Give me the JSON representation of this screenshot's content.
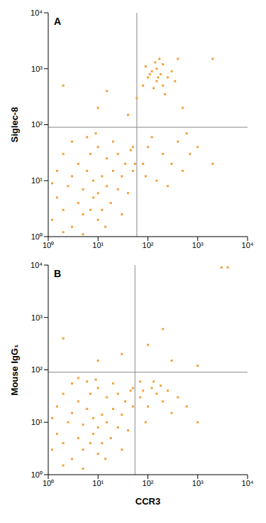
{
  "chart_data": [
    {
      "type": "scatter",
      "title": "A",
      "y_label": "Siglec-8",
      "color": "#f2a23a",
      "marker": "square",
      "log": true,
      "xlim": [
        1,
        10000
      ],
      "ylim": [
        1,
        10000
      ],
      "xticks": [
        {
          "value": 1,
          "label": "10⁰"
        },
        {
          "value": 10,
          "label": "10¹"
        },
        {
          "value": 100,
          "label": "10²"
        },
        {
          "value": 1000,
          "label": "10³"
        },
        {
          "value": 10000,
          "label": "10⁴"
        }
      ],
      "yticks": [
        {
          "value": 1,
          "label": "10⁰"
        },
        {
          "value": 10,
          "label": "10¹"
        },
        {
          "value": 100,
          "label": "10²"
        },
        {
          "value": 1000,
          "label": "10³"
        },
        {
          "value": 10000,
          "label": "10⁴"
        }
      ],
      "quadrant": {
        "x": 60,
        "y": 90
      },
      "x": [
        1.2,
        1.5,
        2,
        2.5,
        3,
        3,
        4,
        4,
        5,
        5,
        6,
        7,
        7,
        8,
        8,
        10,
        10,
        10,
        12,
        12,
        15,
        15,
        18,
        20,
        20,
        25,
        25,
        30,
        35,
        40,
        45,
        50,
        1.5,
        2,
        1.2,
        3,
        6,
        9,
        2,
        5,
        14,
        30,
        50,
        55,
        80,
        100,
        120,
        150,
        150,
        180,
        200,
        200,
        250,
        300,
        130,
        90,
        220,
        170,
        60,
        400,
        350,
        110,
        160,
        140,
        80,
        100,
        150,
        200,
        300,
        400,
        500,
        700,
        1000,
        250,
        120,
        600,
        2000,
        90,
        10,
        15,
        2,
        40,
        500,
        2000
      ],
      "y": [
        2,
        5,
        3,
        8,
        1.5,
        12,
        4,
        20,
        2.5,
        7,
        15,
        3,
        30,
        5,
        10,
        2,
        6,
        40,
        12,
        3,
        8,
        25,
        4,
        15,
        50,
        7,
        30,
        12,
        20,
        6,
        35,
        15,
        15,
        30,
        9,
        50,
        60,
        70,
        1.2,
        1.1,
        1.5,
        2.5,
        40,
        20,
        500,
        700,
        900,
        600,
        1000,
        800,
        500,
        1200,
        700,
        900,
        450,
        1100,
        350,
        1500,
        300,
        1500,
        600,
        800,
        700,
        1300,
        20,
        40,
        10,
        30,
        20,
        50,
        15,
        30,
        40,
        8,
        60,
        70,
        20,
        12,
        200,
        400,
        500,
        150,
        200,
        1500
      ]
    },
    {
      "type": "scatter",
      "title": "B",
      "x_label": "CCR3",
      "y_label": "Mouse IgG₁",
      "color": "#f2a23a",
      "marker": "square",
      "log": true,
      "xlim": [
        1,
        10000
      ],
      "ylim": [
        1,
        10000
      ],
      "xticks": [
        {
          "value": 1,
          "label": "10⁰"
        },
        {
          "value": 10,
          "label": "10¹"
        },
        {
          "value": 100,
          "label": "10²"
        },
        {
          "value": 1000,
          "label": "10³"
        },
        {
          "value": 10000,
          "label": "10⁴"
        }
      ],
      "yticks": [
        {
          "value": 1,
          "label": "10⁰"
        },
        {
          "value": 10,
          "label": "10¹"
        },
        {
          "value": 100,
          "label": "10²"
        },
        {
          "value": 1000,
          "label": "10³"
        },
        {
          "value": 10000,
          "label": "10⁴"
        }
      ],
      "quadrant": {
        "x": 55,
        "y": 90
      },
      "x": [
        1.2,
        1.5,
        2,
        2.5,
        3,
        3,
        4,
        4,
        5,
        5,
        6,
        7,
        7,
        8,
        8,
        10,
        10,
        10,
        12,
        12,
        15,
        15,
        18,
        20,
        20,
        25,
        25,
        30,
        35,
        40,
        45,
        50,
        1.5,
        2,
        1.2,
        3,
        6,
        9,
        2,
        5,
        14,
        30,
        50,
        4,
        70,
        80,
        100,
        120,
        150,
        200,
        250,
        300,
        180,
        90,
        400,
        600,
        1000,
        130,
        70,
        10,
        30,
        100,
        2,
        300,
        1000,
        3000,
        4000,
        200
      ],
      "y": [
        3,
        6,
        4,
        10,
        2,
        15,
        5,
        25,
        3,
        9,
        18,
        4,
        35,
        6,
        12,
        2.5,
        8,
        45,
        14,
        4,
        10,
        30,
        5,
        18,
        55,
        8,
        35,
        14,
        25,
        7,
        40,
        20,
        20,
        35,
        12,
        55,
        60,
        65,
        1.5,
        1.3,
        2,
        3,
        45,
        70,
        30,
        40,
        20,
        45,
        35,
        25,
        40,
        15,
        50,
        10,
        30,
        20,
        10,
        60,
        60,
        150,
        200,
        300,
        400,
        150,
        120,
        9000,
        9000,
        600
      ]
    }
  ]
}
